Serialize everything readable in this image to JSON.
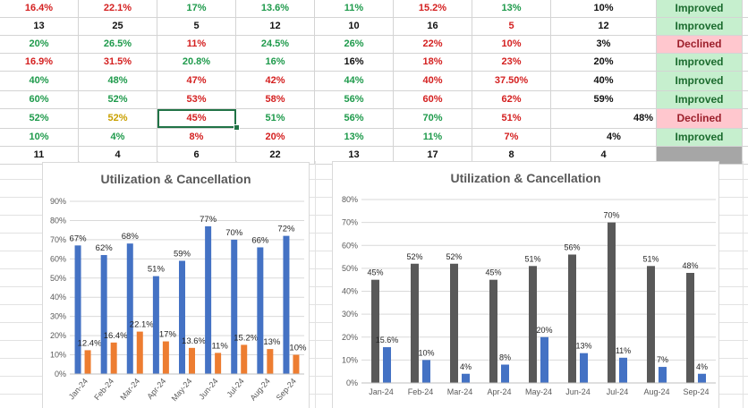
{
  "table": {
    "rows": [
      {
        "cells": [
          {
            "text": "16.4%",
            "color": "red"
          },
          {
            "text": "22.1%",
            "color": "red"
          },
          {
            "text": "17%",
            "color": "green"
          },
          {
            "text": "13.6%",
            "color": "green"
          },
          {
            "text": "11%",
            "color": "green"
          },
          {
            "text": "15.2%",
            "color": "red"
          },
          {
            "text": "13%",
            "color": "green"
          },
          {
            "text": "10%",
            "color": "black"
          }
        ],
        "status": "Improved"
      },
      {
        "cells": [
          {
            "text": "13",
            "color": "black"
          },
          {
            "text": "25",
            "color": "black"
          },
          {
            "text": "5",
            "color": "black"
          },
          {
            "text": "12",
            "color": "black"
          },
          {
            "text": "10",
            "color": "black"
          },
          {
            "text": "16",
            "color": "black"
          },
          {
            "text": "5",
            "color": "red"
          },
          {
            "text": "12",
            "color": "black"
          }
        ],
        "status": "Improved"
      },
      {
        "cells": [
          {
            "text": "20%",
            "color": "green"
          },
          {
            "text": "26.5%",
            "color": "green"
          },
          {
            "text": "11%",
            "color": "red"
          },
          {
            "text": "24.5%",
            "color": "green"
          },
          {
            "text": "26%",
            "color": "green"
          },
          {
            "text": "22%",
            "color": "red"
          },
          {
            "text": "10%",
            "color": "red"
          },
          {
            "text": "3%",
            "color": "black"
          }
        ],
        "status": "Declined"
      },
      {
        "cells": [
          {
            "text": "16.9%",
            "color": "red"
          },
          {
            "text": "31.5%",
            "color": "red"
          },
          {
            "text": "20.8%",
            "color": "green"
          },
          {
            "text": "16%",
            "color": "green"
          },
          {
            "text": "16%",
            "color": "black"
          },
          {
            "text": "18%",
            "color": "red"
          },
          {
            "text": "23%",
            "color": "red"
          },
          {
            "text": "20%",
            "color": "black"
          }
        ],
        "status": "Improved"
      },
      {
        "cells": [
          {
            "text": "40%",
            "color": "green"
          },
          {
            "text": "48%",
            "color": "green"
          },
          {
            "text": "47%",
            "color": "red"
          },
          {
            "text": "42%",
            "color": "red"
          },
          {
            "text": "44%",
            "color": "green"
          },
          {
            "text": "40%",
            "color": "red"
          },
          {
            "text": "37.50%",
            "color": "red"
          },
          {
            "text": "40%",
            "color": "black"
          }
        ],
        "status": "Improved"
      },
      {
        "cells": [
          {
            "text": "60%",
            "color": "green"
          },
          {
            "text": "52%",
            "color": "green"
          },
          {
            "text": "53%",
            "color": "red"
          },
          {
            "text": "58%",
            "color": "red"
          },
          {
            "text": "56%",
            "color": "green"
          },
          {
            "text": "60%",
            "color": "red"
          },
          {
            "text": "62%",
            "color": "red"
          },
          {
            "text": "59%",
            "color": "black"
          }
        ],
        "status": "Improved"
      },
      {
        "cells": [
          {
            "text": "52%",
            "color": "green"
          },
          {
            "text": "52%",
            "color": "amber"
          },
          {
            "text": "45%",
            "color": "red"
          },
          {
            "text": "51%",
            "color": "green"
          },
          {
            "text": "56%",
            "color": "green"
          },
          {
            "text": "70%",
            "color": "green"
          },
          {
            "text": "51%",
            "color": "red"
          },
          {
            "text": "48%",
            "color": "black"
          }
        ],
        "status": "Declined"
      },
      {
        "cells": [
          {
            "text": "10%",
            "color": "green"
          },
          {
            "text": "4%",
            "color": "green"
          },
          {
            "text": "8%",
            "color": "red"
          },
          {
            "text": "20%",
            "color": "red"
          },
          {
            "text": "13%",
            "color": "green"
          },
          {
            "text": "11%",
            "color": "green"
          },
          {
            "text": "7%",
            "color": "red"
          },
          {
            "text": "4%",
            "color": "black"
          }
        ],
        "status": "Improved"
      },
      {
        "cells": [
          {
            "text": "11",
            "color": "black"
          },
          {
            "text": "4",
            "color": "black"
          },
          {
            "text": "6",
            "color": "black"
          },
          {
            "text": "22",
            "color": "black"
          },
          {
            "text": "13",
            "color": "black"
          },
          {
            "text": "17",
            "color": "black"
          },
          {
            "text": "8",
            "color": "black"
          },
          {
            "text": "4",
            "color": "black"
          }
        ],
        "status": ""
      }
    ]
  },
  "colors": {
    "green": "#1e9a4b",
    "red": "#d42020",
    "black": "#111111",
    "amber": "#c9a000",
    "blue_series": "#4472c4",
    "orange_series": "#ed7d31",
    "gray_series": "#595959"
  },
  "chart_data": [
    {
      "type": "bar",
      "title": "Utilization & Cancellation",
      "categories": [
        "Jan-24",
        "Feb-24",
        "Mar-24",
        "Apr-24",
        "May-24",
        "Jun-24",
        "Jul-24",
        "Aug-24",
        "Sep-24"
      ],
      "series": [
        {
          "values": [
            67,
            62,
            68,
            51,
            59,
            77,
            70,
            66,
            72
          ],
          "labels": [
            "67%",
            "62%",
            "68%",
            "51%",
            "59%",
            "77%",
            "70%",
            "66%",
            "72%"
          ],
          "color": "#4472c4"
        },
        {
          "values": [
            12.4,
            16.4,
            22.1,
            17,
            13.6,
            11,
            15.2,
            13,
            10
          ],
          "labels": [
            "12.4%",
            "16.4%",
            "22.1%",
            "17%",
            "13.6%",
            "11%",
            "15.2%",
            "13%",
            "10%"
          ],
          "color": "#ed7d31"
        }
      ],
      "yticks": [
        "0%",
        "10%",
        "20%",
        "30%",
        "40%",
        "50%",
        "60%",
        "70%",
        "80%",
        "90%"
      ],
      "ylim": [
        0,
        90
      ],
      "grid": true,
      "rotated_xticks": true
    },
    {
      "type": "bar",
      "title": "Utilization & Cancellation",
      "categories": [
        "Jan-24",
        "Feb-24",
        "Mar-24",
        "Apr-24",
        "May-24",
        "Jun-24",
        "Jul-24",
        "Aug-24",
        "Sep-24"
      ],
      "series": [
        {
          "values": [
            45,
            52,
            52,
            45,
            51,
            56,
            70,
            51,
            48
          ],
          "labels": [
            "45%",
            "52%",
            "52%",
            "45%",
            "51%",
            "56%",
            "70%",
            "51%",
            "48%"
          ],
          "color": "#595959"
        },
        {
          "values": [
            15.6,
            10,
            4,
            8,
            20,
            13,
            11,
            7,
            4
          ],
          "labels": [
            "15.6%",
            "10%",
            "4%",
            "8%",
            "20%",
            "13%",
            "11%",
            "7%",
            "4%"
          ],
          "color": "#4472c4"
        }
      ],
      "yticks": [
        "0%",
        "10%",
        "20%",
        "30%",
        "40%",
        "50%",
        "60%",
        "70%",
        "80%"
      ],
      "ylim": [
        0,
        80
      ],
      "grid": true,
      "rotated_xticks": false
    }
  ]
}
